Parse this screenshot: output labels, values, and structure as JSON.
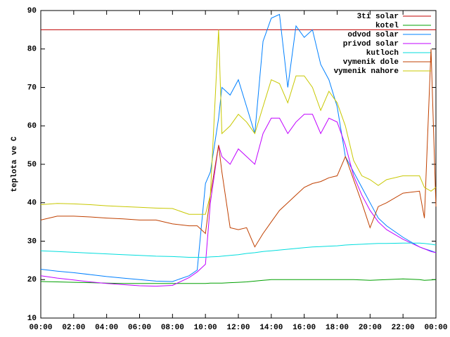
{
  "chart_data": {
    "type": "line",
    "ylabel": "teplota ve C",
    "x": [
      0,
      1,
      2,
      3,
      4,
      5,
      6,
      7,
      8,
      9,
      9.5,
      10,
      10.3,
      10.8,
      11,
      11.5,
      12,
      12.5,
      13,
      13.5,
      14,
      14.5,
      15,
      15.5,
      16,
      16.5,
      17,
      17.5,
      18,
      18.5,
      19,
      19.5,
      20,
      20.5,
      21,
      22,
      23,
      23.3,
      23.7,
      24
    ],
    "xlim": [
      0,
      24
    ],
    "xticks": [
      {
        "value": 0,
        "label": "00:00"
      },
      {
        "value": 2,
        "label": "02:00"
      },
      {
        "value": 4,
        "label": "04:00"
      },
      {
        "value": 6,
        "label": "06:00"
      },
      {
        "value": 8,
        "label": "08:00"
      },
      {
        "value": 10,
        "label": "10:00"
      },
      {
        "value": 12,
        "label": "12:00"
      },
      {
        "value": 14,
        "label": "14:00"
      },
      {
        "value": 16,
        "label": "16:00"
      },
      {
        "value": 18,
        "label": "18:00"
      },
      {
        "value": 20,
        "label": "20:00"
      },
      {
        "value": 22,
        "label": "22:00"
      },
      {
        "value": 24,
        "label": "00:00"
      }
    ],
    "ylim": [
      10,
      90
    ],
    "yticks": [
      10,
      20,
      30,
      40,
      50,
      60,
      70,
      80,
      90
    ],
    "legend": "top-right",
    "series": [
      {
        "name": "3ti solar",
        "color": "#c00000",
        "values": [
          85,
          85,
          85,
          85,
          85,
          85,
          85,
          85,
          85,
          85,
          85,
          85,
          85,
          85,
          85,
          85,
          85,
          85,
          85,
          85,
          85,
          85,
          85,
          85,
          85,
          85,
          85,
          85,
          85,
          85,
          85,
          85,
          85,
          85,
          85,
          85,
          85,
          85,
          85,
          85
        ]
      },
      {
        "name": "kotel",
        "color": "#00a000",
        "values": [
          19.5,
          19.4,
          19.3,
          19.2,
          19.1,
          19,
          19,
          19,
          19,
          19,
          19,
          19,
          19.1,
          19.1,
          19.1,
          19.2,
          19.3,
          19.4,
          19.6,
          19.8,
          20,
          20,
          20,
          20,
          20,
          20,
          20,
          20,
          20,
          20,
          20,
          19.9,
          19.8,
          19.9,
          20,
          20.2,
          20,
          19.8,
          19.9,
          20
        ]
      },
      {
        "name": "odvod solar",
        "color": "#0080ff",
        "values": [
          22.7,
          22.2,
          21.8,
          21.3,
          20.8,
          20.4,
          20,
          19.6,
          19.5,
          21,
          22.5,
          45,
          48,
          62,
          70,
          68,
          72,
          65,
          58,
          82,
          88,
          89,
          70,
          86,
          83,
          85,
          76,
          72,
          65,
          52,
          48,
          44,
          40,
          36,
          34,
          31,
          28.5,
          28,
          27.5,
          27
        ]
      },
      {
        "name": "privod solar",
        "color": "#c000ff",
        "values": [
          21,
          20.4,
          19.9,
          19.4,
          19,
          18.7,
          18.4,
          18.3,
          18.5,
          20.5,
          22,
          24,
          40,
          55,
          52,
          50,
          54,
          52,
          50,
          58,
          62,
          62,
          58,
          61,
          63,
          63,
          58,
          62,
          61,
          55,
          47,
          42,
          38,
          35,
          33,
          30.5,
          28.5,
          28,
          27.3,
          27
        ]
      },
      {
        "name": "kutloch",
        "color": "#00dddd",
        "values": [
          27.5,
          27.3,
          27.1,
          26.9,
          26.7,
          26.5,
          26.3,
          26.1,
          26,
          25.8,
          25.8,
          25.8,
          25.9,
          26,
          26.1,
          26.3,
          26.5,
          26.8,
          27,
          27.3,
          27.5,
          27.7,
          27.9,
          28.1,
          28.3,
          28.5,
          28.6,
          28.7,
          28.8,
          29,
          29.1,
          29.2,
          29.3,
          29.4,
          29.4,
          29.5,
          29.5,
          29.4,
          29.2,
          29
        ]
      },
      {
        "name": "vymenik dole",
        "color": "#c04000",
        "values": [
          35.5,
          36.5,
          36.5,
          36.3,
          36,
          35.8,
          35.5,
          35.5,
          34.5,
          34,
          34,
          32,
          42,
          55,
          48,
          33.5,
          33,
          33.5,
          28.5,
          32,
          35,
          38,
          40,
          42,
          44,
          45,
          45.5,
          46.5,
          47,
          52,
          46,
          40,
          33.5,
          39,
          40,
          42.5,
          43,
          36,
          80,
          39
        ]
      },
      {
        "name": "vymenik nahore",
        "color": "#c8c800",
        "values": [
          39.5,
          39.8,
          39.7,
          39.5,
          39.2,
          39,
          38.8,
          38.6,
          38.5,
          37,
          37,
          37,
          42,
          85,
          58,
          60,
          63,
          61,
          58,
          65,
          72,
          71,
          66,
          73,
          73,
          70,
          64,
          69,
          66,
          60,
          51,
          47,
          46,
          44.5,
          46,
          47,
          47,
          44,
          43,
          44
        ]
      }
    ]
  }
}
